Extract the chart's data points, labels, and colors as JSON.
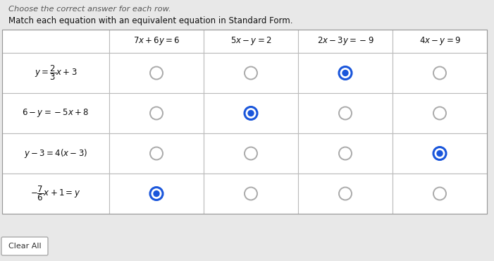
{
  "title_top": "Choose the correct answer for each row.",
  "subtitle": "Match each equation with an equivalent equation in Standard Form.",
  "col_headers_math": [
    "$7x + 6y = 6$",
    "$5x - y = 2$",
    "$2x - 3y = -9$",
    "$4x - y = 9$"
  ],
  "row_labels_math": [
    "$y = \\dfrac{2}{3}x + 3$",
    "$6 - y = -5x + 8$",
    "$y - 3 = 4(x - 3)$",
    "$-\\dfrac{7}{6}x + 1 = y$"
  ],
  "selected": [
    [
      false,
      false,
      true,
      false
    ],
    [
      false,
      true,
      false,
      false
    ],
    [
      false,
      false,
      false,
      true
    ],
    [
      true,
      false,
      false,
      false
    ]
  ],
  "bg_color": "#e8e8e8",
  "table_bg": "#ffffff",
  "header_bg": "#ffffff",
  "label_bg": "#ffffff",
  "cell_bg": "#ffffff",
  "border_color": "#bbbbbb",
  "selected_color": "#1a56db",
  "unselected_edge": "#aaaaaa",
  "text_color": "#111111",
  "title_color": "#555555",
  "subtitle_color": "#111111",
  "clear_btn_color": "#333333"
}
